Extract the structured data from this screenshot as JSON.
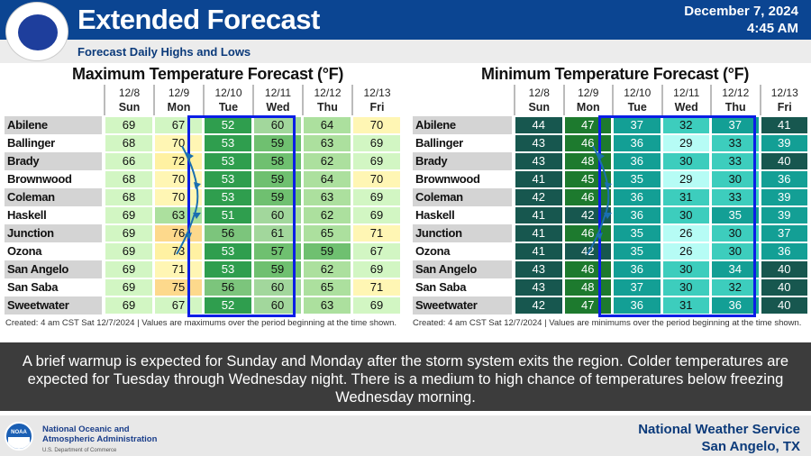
{
  "header": {
    "title": "Extended Forecast",
    "subtitle": "Forecast Daily Highs and Lows",
    "date": "December 7, 2024",
    "time": "4:45 AM"
  },
  "days": [
    {
      "date": "12/8",
      "dow": "Sun"
    },
    {
      "date": "12/9",
      "dow": "Mon"
    },
    {
      "date": "12/10",
      "dow": "Tue"
    },
    {
      "date": "12/11",
      "dow": "Wed"
    },
    {
      "date": "12/12",
      "dow": "Thu"
    },
    {
      "date": "12/13",
      "dow": "Fri"
    }
  ],
  "cities": [
    "Abilene",
    "Ballinger",
    "Brady",
    "Brownwood",
    "Coleman",
    "Haskell",
    "Junction",
    "Ozona",
    "San Angelo",
    "San Saba",
    "Sweetwater"
  ],
  "max_table": {
    "title": "Maximum Temperature Forecast (°F)",
    "caption": "Created: 4 am CST Sat 12/7/2024  |  Values are maximums over the period beginning at the time shown.",
    "values": [
      [
        69,
        67,
        52,
        60,
        64,
        70
      ],
      [
        68,
        70,
        53,
        59,
        63,
        69
      ],
      [
        66,
        72,
        53,
        58,
        62,
        69
      ],
      [
        68,
        70,
        53,
        59,
        64,
        70
      ],
      [
        68,
        70,
        53,
        59,
        63,
        69
      ],
      [
        69,
        63,
        51,
        60,
        62,
        69
      ],
      [
        69,
        76,
        56,
        61,
        65,
        71
      ],
      [
        69,
        73,
        53,
        57,
        59,
        67
      ],
      [
        69,
        71,
        53,
        59,
        62,
        69
      ],
      [
        69,
        75,
        56,
        60,
        65,
        71
      ],
      [
        69,
        67,
        52,
        60,
        63,
        69
      ]
    ]
  },
  "min_table": {
    "title": "Minimum Temperature Forecast (°F)",
    "caption": "Created: 4 am CST Sat 12/7/2024  |  Values are minimums over the period beginning at the time shown.",
    "values": [
      [
        44,
        47,
        37,
        32,
        37,
        41
      ],
      [
        43,
        46,
        36,
        29,
        33,
        39
      ],
      [
        43,
        48,
        36,
        30,
        33,
        40
      ],
      [
        41,
        45,
        35,
        29,
        30,
        36
      ],
      [
        42,
        46,
        36,
        31,
        33,
        39
      ],
      [
        41,
        42,
        36,
        30,
        35,
        39
      ],
      [
        41,
        46,
        35,
        26,
        30,
        37
      ],
      [
        41,
        42,
        35,
        26,
        30,
        36
      ],
      [
        43,
        46,
        36,
        30,
        34,
        40
      ],
      [
        43,
        48,
        37,
        30,
        32,
        40
      ],
      [
        42,
        47,
        36,
        31,
        36,
        40
      ]
    ]
  },
  "summary": "A brief warmup is expected for Sunday and Monday after the storm system exits the region.  Colder temperatures are expected for Tuesday through Wednesday night.  There is a medium to high chance of temperatures below freezing Wednesday morning.",
  "footer": {
    "noaa_line1": "National Oceanic and",
    "noaa_line2": "Atmospheric Administration",
    "noaa_line3": "U.S. Department of Commerce",
    "office": "National Weather Service",
    "location": "San Angelo, TX",
    "nws_logo_text": "NATIONAL WEATHER SERVICE",
    "noaa_logo_text": "NOAA"
  }
}
